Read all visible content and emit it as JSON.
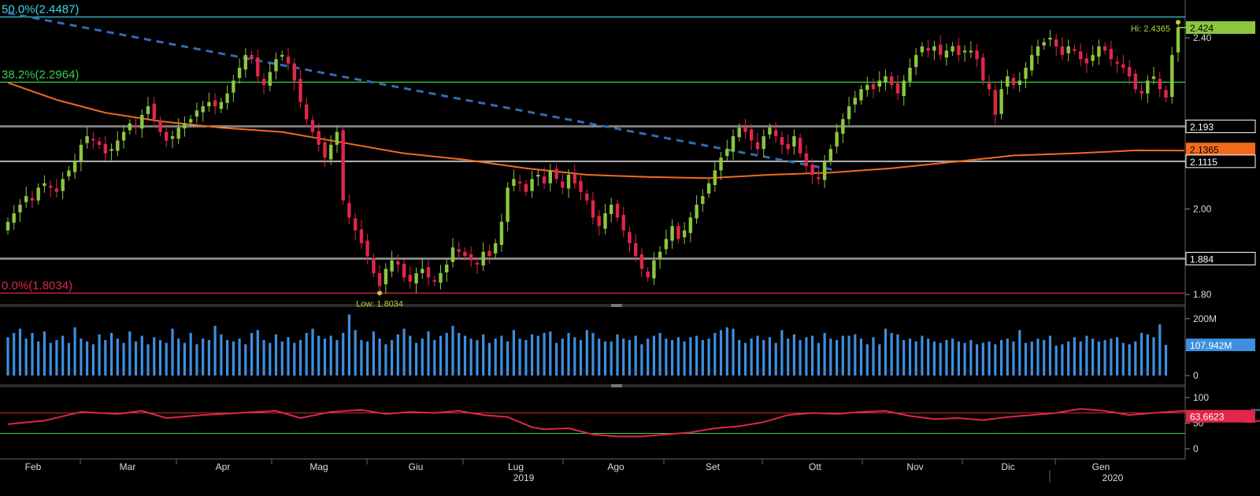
{
  "chart_data": {
    "type": "candlestick",
    "title": "",
    "colors": {
      "up": "#8cc63f",
      "down": "#e0264a",
      "ma": "#f26b1d",
      "volume": "#3d8fe0",
      "rsi": "#e0264a",
      "fib_50": "#3fd7e6",
      "fib_382": "#36d04a",
      "fib_0": "#e0264a",
      "trendline": "#2f6db3",
      "rsi_trend": "#3a64a8",
      "axis_text": "#dddddd",
      "grid": "#3a3a3a"
    },
    "x_axis": {
      "months": [
        "Feb",
        "Mar",
        "Apr",
        "Mag",
        "Giu",
        "Lug",
        "Ago",
        "Set",
        "Ott",
        "Nov",
        "Dic",
        "Gen"
      ],
      "years": [
        "2019",
        "2020"
      ]
    },
    "price": {
      "yticks": [
        1.8,
        2.0,
        2.4
      ],
      "ytick_labels": [
        "1.80",
        "2.00",
        "2.40"
      ],
      "levels": [
        {
          "value": 2.193,
          "label": "2.193"
        },
        {
          "value": 2.1115,
          "label": "2.1115"
        },
        {
          "value": 1.884,
          "label": "1.884"
        }
      ],
      "fib": [
        {
          "value": 2.4487,
          "label": "50.0%(2.4487)"
        },
        {
          "value": 2.2964,
          "label": "38.2%(2.2964)"
        },
        {
          "value": 1.8034,
          "label": "0.0%(1.8034)"
        }
      ],
      "last_price": {
        "value": 2.424,
        "label": "2.424"
      },
      "ma_last": {
        "value": 2.1365,
        "label": "2.1365"
      },
      "hi_label": "Hi: 2.4365",
      "low_label": "Low: 1.8034",
      "closes": [
        1.97,
        1.99,
        2.01,
        2.03,
        2.02,
        2.05,
        2.06,
        2.05,
        2.04,
        2.07,
        2.09,
        2.11,
        2.15,
        2.17,
        2.16,
        2.15,
        2.13,
        2.14,
        2.16,
        2.18,
        2.2,
        2.19,
        2.22,
        2.24,
        2.21,
        2.18,
        2.16,
        2.17,
        2.19,
        2.2,
        2.21,
        2.23,
        2.24,
        2.25,
        2.24,
        2.25,
        2.27,
        2.3,
        2.33,
        2.36,
        2.35,
        2.31,
        2.29,
        2.32,
        2.35,
        2.36,
        2.34,
        2.3,
        2.25,
        2.21,
        2.18,
        2.15,
        2.12,
        2.15,
        2.18,
        2.02,
        1.98,
        1.95,
        1.92,
        1.89,
        1.85,
        1.82,
        1.86,
        1.88,
        1.87,
        1.84,
        1.83,
        1.85,
        1.86,
        1.84,
        1.83,
        1.85,
        1.87,
        1.91,
        1.9,
        1.89,
        1.88,
        1.87,
        1.9,
        1.89,
        1.92,
        1.97,
        2.05,
        2.07,
        2.06,
        2.04,
        2.07,
        2.08,
        2.06,
        2.09,
        2.07,
        2.05,
        2.08,
        2.06,
        2.04,
        2.02,
        1.98,
        1.96,
        1.99,
        2.01,
        1.98,
        1.95,
        1.92,
        1.89,
        1.86,
        1.84,
        1.88,
        1.9,
        1.93,
        1.96,
        1.93,
        1.95,
        1.98,
        2.01,
        2.03,
        2.06,
        2.09,
        2.12,
        2.14,
        2.17,
        2.19,
        2.18,
        2.16,
        2.14,
        2.17,
        2.19,
        2.17,
        2.15,
        2.14,
        2.17,
        2.13,
        2.1,
        2.08,
        2.07,
        2.11,
        2.14,
        2.18,
        2.21,
        2.24,
        2.26,
        2.28,
        2.29,
        2.28,
        2.3,
        2.31,
        2.29,
        2.27,
        2.3,
        2.33,
        2.36,
        2.38,
        2.37,
        2.38,
        2.36,
        2.37,
        2.38,
        2.36,
        2.37,
        2.37,
        2.35,
        2.3,
        2.28,
        2.22,
        2.28,
        2.31,
        2.29,
        2.3,
        2.33,
        2.36,
        2.38,
        2.39,
        2.4,
        2.38,
        2.36,
        2.38,
        2.37,
        2.35,
        2.34,
        2.36,
        2.38,
        2.37,
        2.35,
        2.34,
        2.33,
        2.31,
        2.28,
        2.27,
        2.3,
        2.31,
        2.28,
        2.26,
        2.36,
        2.424
      ],
      "ma": [
        [
          0,
          2.295
        ],
        [
          8,
          2.255
        ],
        [
          16,
          2.225
        ],
        [
          25,
          2.205
        ],
        [
          35,
          2.19
        ],
        [
          45,
          2.18
        ],
        [
          55,
          2.155
        ],
        [
          65,
          2.13
        ],
        [
          75,
          2.115
        ],
        [
          85,
          2.095
        ],
        [
          95,
          2.08
        ],
        [
          105,
          2.075
        ],
        [
          115,
          2.072
        ],
        [
          125,
          2.08
        ],
        [
          135,
          2.085
        ],
        [
          145,
          2.095
        ],
        [
          155,
          2.11
        ],
        [
          165,
          2.125
        ],
        [
          175,
          2.13
        ],
        [
          185,
          2.137
        ],
        [
          193,
          2.1365
        ]
      ]
    },
    "volume": {
      "yticks": [
        0,
        200
      ],
      "ytick_labels": [
        "0",
        "200M"
      ],
      "last": {
        "value": 107.942,
        "label": "107.942M"
      },
      "values": [
        135,
        150,
        165,
        130,
        150,
        120,
        155,
        115,
        125,
        140,
        115,
        170,
        130,
        120,
        110,
        145,
        125,
        150,
        130,
        115,
        155,
        120,
        140,
        110,
        135,
        125,
        115,
        165,
        130,
        115,
        150,
        110,
        130,
        125,
        175,
        145,
        125,
        120,
        130,
        110,
        150,
        160,
        125,
        115,
        145,
        120,
        135,
        115,
        125,
        150,
        165,
        140,
        130,
        140,
        125,
        150,
        215,
        160,
        125,
        120,
        155,
        130,
        110,
        125,
        145,
        165,
        140,
        115,
        130,
        155,
        125,
        140,
        150,
        175,
        150,
        140,
        130,
        125,
        145,
        115,
        130,
        140,
        120,
        160,
        130,
        125,
        145,
        140,
        150,
        155,
        115,
        130,
        150,
        135,
        125,
        160,
        150,
        130,
        120,
        120,
        145,
        130,
        125,
        140,
        110,
        130,
        140,
        150,
        130,
        125,
        135,
        120,
        135,
        140,
        125,
        130,
        150,
        160,
        170,
        165,
        125,
        115,
        130,
        140,
        125,
        135,
        115,
        160,
        130,
        145,
        125,
        135,
        140,
        115,
        150,
        130,
        125,
        140,
        140,
        145,
        130,
        110,
        135,
        110,
        165,
        150,
        145,
        125,
        130,
        120,
        140,
        130,
        120,
        115,
        125,
        130,
        120,
        115,
        125,
        110,
        115,
        120,
        110,
        125,
        130,
        120,
        160,
        115,
        120,
        130,
        125,
        140,
        105,
        110,
        120,
        135,
        120,
        140,
        130,
        120,
        125,
        130,
        135,
        115,
        110,
        120,
        150,
        145,
        135,
        180,
        108
      ]
    },
    "rsi": {
      "yticks": [
        0,
        50,
        100
      ],
      "ytick_labels": [
        "0",
        "50",
        "100"
      ],
      "upper": 70,
      "lower": 30,
      "last": {
        "value": 63.6623,
        "label": "63.6623"
      },
      "points": [
        [
          0,
          48
        ],
        [
          6,
          55
        ],
        [
          12,
          72
        ],
        [
          18,
          68
        ],
        [
          22,
          74
        ],
        [
          26,
          60
        ],
        [
          32,
          66
        ],
        [
          38,
          70
        ],
        [
          44,
          74
        ],
        [
          48,
          60
        ],
        [
          53,
          72
        ],
        [
          58,
          76
        ],
        [
          62,
          68
        ],
        [
          66,
          72
        ],
        [
          70,
          70
        ],
        [
          74,
          74
        ],
        [
          78,
          66
        ],
        [
          82,
          62
        ],
        [
          86,
          42
        ],
        [
          88,
          38
        ],
        [
          92,
          40
        ],
        [
          96,
          28
        ],
        [
          100,
          24
        ],
        [
          104,
          24
        ],
        [
          108,
          28
        ],
        [
          112,
          32
        ],
        [
          116,
          40
        ],
        [
          120,
          44
        ],
        [
          124,
          52
        ],
        [
          128,
          66
        ],
        [
          132,
          70
        ],
        [
          136,
          68
        ],
        [
          140,
          72
        ],
        [
          144,
          74
        ],
        [
          148,
          64
        ],
        [
          152,
          58
        ],
        [
          156,
          60
        ],
        [
          160,
          56
        ],
        [
          164,
          62
        ],
        [
          168,
          66
        ],
        [
          172,
          70
        ],
        [
          176,
          78
        ],
        [
          180,
          74
        ],
        [
          184,
          66
        ],
        [
          188,
          70
        ],
        [
          193,
          74
        ],
        [
          199,
          56
        ],
        [
          204,
          52
        ],
        [
          208,
          60
        ],
        [
          212,
          56
        ],
        [
          216,
          52
        ],
        [
          220,
          42
        ],
        [
          224,
          40
        ],
        [
          228,
          52
        ],
        [
          232,
          50
        ],
        [
          236,
          42
        ],
        [
          240,
          52
        ],
        [
          244,
          54
        ],
        [
          248,
          60
        ],
        [
          253,
          63.6623
        ]
      ],
      "trendline": [
        [
          204,
          76
        ],
        [
          253,
          62
        ]
      ]
    }
  }
}
